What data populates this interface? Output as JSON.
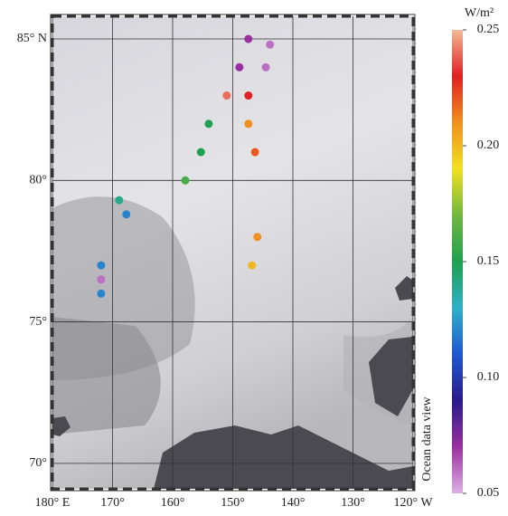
{
  "chart_data": {
    "type": "scatter",
    "x": [
      147.4,
      143.8,
      148.9,
      144.5,
      151.0,
      147.4,
      154.0,
      147.4,
      155.3,
      146.3,
      157.9,
      168.9,
      167.7,
      145.9,
      146.8,
      171.9,
      171.9,
      171.9
    ],
    "y": [
      85.0,
      84.8,
      84.0,
      84.0,
      83.0,
      83.0,
      82.0,
      82.0,
      81.0,
      81.0,
      80.0,
      79.3,
      78.8,
      78.0,
      77.0,
      77.0,
      76.5,
      76.0
    ],
    "values": [
      0.07,
      0.06,
      0.07,
      0.06,
      0.24,
      0.23,
      0.15,
      0.21,
      0.15,
      0.22,
      0.16,
      0.14,
      0.12,
      0.21,
      0.2,
      0.12,
      0.06,
      0.12
    ],
    "xlim": [
      180,
      120
    ],
    "xticks": [
      {
        "value": 180,
        "label": "180° E"
      },
      {
        "value": 170,
        "label": "170°"
      },
      {
        "value": 160,
        "label": "160°"
      },
      {
        "value": 150,
        "label": "150°"
      },
      {
        "value": 140,
        "label": "140°"
      },
      {
        "value": 130,
        "label": "130°"
      },
      {
        "value": 120,
        "label": "120° W"
      }
    ],
    "ylim": [
      69.1,
      85.8
    ],
    "yticks": [
      {
        "value": 85,
        "label": "85° N"
      },
      {
        "value": 80,
        "label": "80°"
      },
      {
        "value": 75,
        "label": "75°"
      },
      {
        "value": 70,
        "label": "70°"
      }
    ],
    "colorbar_label": "W/m²",
    "clim": [
      0.05,
      0.25
    ],
    "cticks": [
      0.05,
      {
        "value": 0.1,
        "label": "0.10"
      },
      0.15,
      {
        "value": 0.2,
        "label": "0.20"
      },
      0.25
    ],
    "colormap": [
      "#dcb0e6",
      "#9a30a0",
      "#2a1a8a",
      "#2058d0",
      "#30b0c8",
      "#20a050",
      "#70b840",
      "#f0e020",
      "#f09020",
      "#e02020",
      "#f4b898"
    ],
    "watermark": "Ocean data view",
    "grid": true
  }
}
